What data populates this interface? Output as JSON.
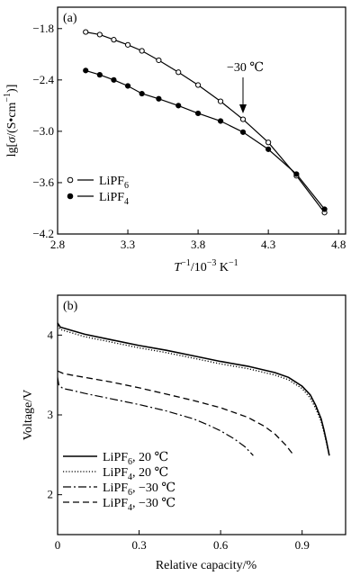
{
  "chart_data": [
    {
      "type": "line",
      "panel_label": "(a)",
      "xlabel": {
        "var": "T",
        "sup": "−1",
        "unit": "/10",
        "unit_sup": "−3",
        "unit_rest": " K",
        "unit_rest_sup": "−1"
      },
      "ylabel": {
        "pre": "lg[",
        "var": "σ",
        "unit": "/(S•cm",
        "unit_sup": "−1",
        "post": ")]"
      },
      "xlim": [
        2.8,
        4.85
      ],
      "ylim": [
        -4.2,
        -1.55
      ],
      "xticks": [
        2.8,
        3.3,
        3.8,
        4.3,
        4.8
      ],
      "xtick_labels": [
        "2.8",
        "3.3",
        "3.8",
        "4.3",
        "4.8"
      ],
      "yticks": [
        -1.8,
        -2.4,
        -3.0,
        -3.6,
        -4.2
      ],
      "ytick_labels": [
        "−1.8",
        "−2.4",
        "−3.0",
        "−3.6",
        "−4.2"
      ],
      "annotation": {
        "text": "−30 ℃",
        "x": 4.12,
        "y": -2.86
      },
      "legend_position": "bottom-left",
      "series": [
        {
          "name": "LiPF",
          "name_sub": "6",
          "marker": "open-circle",
          "x": [
            3.0,
            3.1,
            3.2,
            3.3,
            3.4,
            3.52,
            3.66,
            3.8,
            3.96,
            4.12,
            4.3,
            4.5,
            4.7
          ],
          "y": [
            -1.84,
            -1.87,
            -1.93,
            -1.99,
            -2.06,
            -2.17,
            -2.31,
            -2.46,
            -2.65,
            -2.86,
            -3.13,
            -3.52,
            -3.95
          ]
        },
        {
          "name": "LiPF",
          "name_sub": "4",
          "marker": "filled-circle",
          "x": [
            3.0,
            3.1,
            3.2,
            3.3,
            3.4,
            3.52,
            3.66,
            3.8,
            3.96,
            4.12,
            4.3,
            4.5,
            4.7
          ],
          "y": [
            -2.29,
            -2.34,
            -2.4,
            -2.47,
            -2.56,
            -2.62,
            -2.7,
            -2.79,
            -2.88,
            -3.01,
            -3.21,
            -3.5,
            -3.91
          ]
        }
      ]
    },
    {
      "type": "line",
      "panel_label": "(b)",
      "xlabel": "Relative capacity/%",
      "ylabel": "Voltage/V",
      "xlim": [
        0,
        1.06
      ],
      "ylim": [
        1.5,
        4.5
      ],
      "xticks": [
        0,
        0.3,
        0.6,
        0.9
      ],
      "xtick_labels": [
        "0",
        "0.3",
        "0.6",
        "0.9"
      ],
      "yticks": [
        2,
        3,
        4
      ],
      "ytick_labels": [
        "2",
        "3",
        "4"
      ],
      "legend_position": "bottom-left",
      "series": [
        {
          "name": "LiPF",
          "name_sub": "6",
          "name_rest": ", 20 ℃",
          "style": "solid",
          "x": [
            0,
            0.01,
            0.05,
            0.1,
            0.2,
            0.3,
            0.4,
            0.5,
            0.6,
            0.7,
            0.8,
            0.85,
            0.9,
            0.93,
            0.95,
            0.97,
            0.98,
            0.99,
            1.0
          ],
          "y": [
            4.15,
            4.1,
            4.06,
            4.01,
            3.94,
            3.87,
            3.81,
            3.74,
            3.67,
            3.61,
            3.53,
            3.47,
            3.36,
            3.25,
            3.12,
            2.95,
            2.82,
            2.66,
            2.49
          ]
        },
        {
          "name": "LiPF",
          "name_sub": "4",
          "name_rest": ", 20 ℃",
          "style": "dotted",
          "x": [
            0,
            0.01,
            0.05,
            0.1,
            0.2,
            0.3,
            0.4,
            0.5,
            0.6,
            0.7,
            0.8,
            0.85,
            0.9,
            0.93,
            0.95,
            0.97,
            0.98,
            0.99,
            1.0
          ],
          "y": [
            4.12,
            4.07,
            4.03,
            3.98,
            3.91,
            3.84,
            3.78,
            3.71,
            3.64,
            3.58,
            3.5,
            3.44,
            3.33,
            3.21,
            3.08,
            2.92,
            2.79,
            2.64,
            2.49
          ]
        },
        {
          "name": "LiPF",
          "name_sub": "6",
          "name_rest": ", −30 ℃",
          "style": "dashdot",
          "x": [
            0,
            0.005,
            0.02,
            0.05,
            0.1,
            0.2,
            0.3,
            0.4,
            0.5,
            0.55,
            0.6,
            0.65,
            0.69,
            0.72
          ],
          "y": [
            3.47,
            3.37,
            3.33,
            3.31,
            3.27,
            3.2,
            3.13,
            3.05,
            2.95,
            2.88,
            2.8,
            2.7,
            2.6,
            2.49
          ]
        },
        {
          "name": "LiPF",
          "name_sub": "4",
          "name_rest": ", −30 ℃",
          "style": "dashed",
          "x": [
            0,
            0.02,
            0.05,
            0.1,
            0.2,
            0.3,
            0.4,
            0.5,
            0.6,
            0.7,
            0.76,
            0.8,
            0.84,
            0.87
          ],
          "y": [
            3.55,
            3.52,
            3.5,
            3.47,
            3.41,
            3.34,
            3.26,
            3.18,
            3.09,
            2.97,
            2.86,
            2.76,
            2.62,
            2.49
          ]
        }
      ]
    }
  ]
}
